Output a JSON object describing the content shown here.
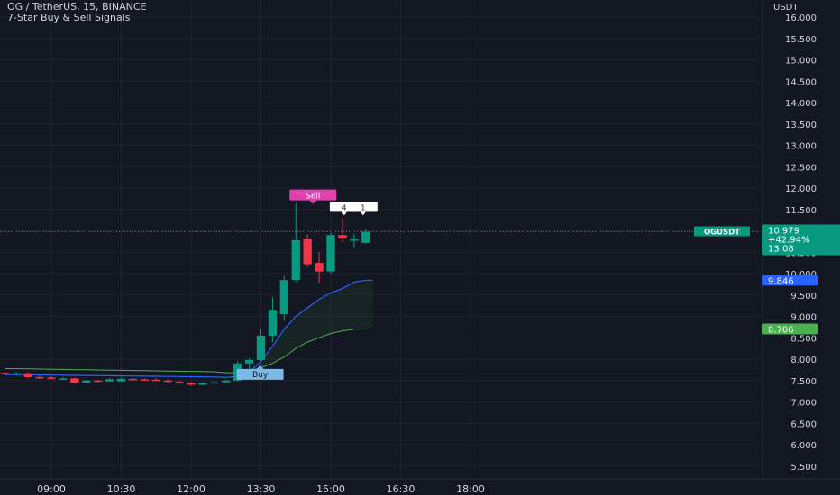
{
  "header": {
    "title": "OG / TetherUS, 15, BINANCE",
    "indicator": "7-Star Buy & Sell Signals"
  },
  "price_axis": {
    "currency": "USDT",
    "ticks": [
      "16.000",
      "15.500",
      "15.000",
      "14.500",
      "14.000",
      "13.500",
      "13.000",
      "12.500",
      "12.000",
      "11.500",
      "11.000",
      "10.500",
      "10.000",
      "9.500",
      "9.000",
      "8.500",
      "8.000",
      "7.500",
      "7.000",
      "6.500",
      "6.000",
      "5.500"
    ]
  },
  "time_axis": {
    "ticks": [
      "09:00",
      "10:30",
      "12:00",
      "13:30",
      "15:00",
      "16:30",
      "18:00"
    ]
  },
  "price_labels": {
    "symbol": "OGUSDT",
    "last_price": "10.979",
    "change": "+42.94%",
    "countdown": "13:08",
    "upper_line": "9.846",
    "lower_line": "8.706"
  },
  "signals": {
    "sell": "Sell",
    "buy": "Buy",
    "marker_a": "4",
    "marker_b": "1"
  },
  "colors": {
    "background": "#131722",
    "grid": "#1f2330",
    "up": "#089981",
    "down": "#f23645",
    "blue_line": "#2962ff",
    "green_line": "#4caf50",
    "sell_label": "#e040b0",
    "buy_label": "#7cb9e8",
    "text": "#d1d4dc"
  },
  "chart_data": {
    "type": "candlestick",
    "symbol": "OGUSDT",
    "interval": "15",
    "exchange": "BINANCE",
    "ylim": [
      5.2,
      16.4
    ],
    "candles": [
      {
        "t": "08:00",
        "o": 7.68,
        "h": 7.7,
        "l": 7.62,
        "c": 7.66
      },
      {
        "t": "08:15",
        "o": 7.66,
        "h": 7.7,
        "l": 7.62,
        "c": 7.67
      },
      {
        "t": "08:30",
        "o": 7.67,
        "h": 7.7,
        "l": 7.55,
        "c": 7.58
      },
      {
        "t": "08:45",
        "o": 7.58,
        "h": 7.62,
        "l": 7.54,
        "c": 7.57
      },
      {
        "t": "09:00",
        "o": 7.57,
        "h": 7.6,
        "l": 7.53,
        "c": 7.54
      },
      {
        "t": "09:15",
        "o": 7.54,
        "h": 7.58,
        "l": 7.51,
        "c": 7.55
      },
      {
        "t": "09:30",
        "o": 7.55,
        "h": 7.57,
        "l": 7.43,
        "c": 7.45
      },
      {
        "t": "09:45",
        "o": 7.45,
        "h": 7.52,
        "l": 7.44,
        "c": 7.5
      },
      {
        "t": "10:00",
        "o": 7.5,
        "h": 7.52,
        "l": 7.46,
        "c": 7.48
      },
      {
        "t": "10:15",
        "o": 7.48,
        "h": 7.56,
        "l": 7.47,
        "c": 7.53
      },
      {
        "t": "10:30",
        "o": 7.48,
        "h": 7.57,
        "l": 7.46,
        "c": 7.54
      },
      {
        "t": "10:45",
        "o": 7.54,
        "h": 7.56,
        "l": 7.51,
        "c": 7.53
      },
      {
        "t": "11:00",
        "o": 7.53,
        "h": 7.55,
        "l": 7.5,
        "c": 7.52
      },
      {
        "t": "11:15",
        "o": 7.52,
        "h": 7.56,
        "l": 7.49,
        "c": 7.5
      },
      {
        "t": "11:30",
        "o": 7.5,
        "h": 7.53,
        "l": 7.45,
        "c": 7.47
      },
      {
        "t": "11:45",
        "o": 7.47,
        "h": 7.5,
        "l": 7.43,
        "c": 7.45
      },
      {
        "t": "12:00",
        "o": 7.45,
        "h": 7.47,
        "l": 7.38,
        "c": 7.4
      },
      {
        "t": "12:15",
        "o": 7.4,
        "h": 7.46,
        "l": 7.39,
        "c": 7.44
      },
      {
        "t": "12:30",
        "o": 7.44,
        "h": 7.48,
        "l": 7.42,
        "c": 7.46
      },
      {
        "t": "12:45",
        "o": 7.46,
        "h": 7.52,
        "l": 7.45,
        "c": 7.5
      },
      {
        "t": "13:00",
        "o": 7.5,
        "h": 7.95,
        "l": 7.48,
        "c": 7.9
      },
      {
        "t": "13:15",
        "o": 7.9,
        "h": 8.02,
        "l": 7.72,
        "c": 7.98
      },
      {
        "t": "13:30",
        "o": 7.98,
        "h": 8.7,
        "l": 7.95,
        "c": 8.55
      },
      {
        "t": "13:45",
        "o": 8.55,
        "h": 9.45,
        "l": 8.4,
        "c": 9.15
      },
      {
        "t": "14:00",
        "o": 9.05,
        "h": 9.95,
        "l": 8.9,
        "c": 9.85
      },
      {
        "t": "14:15",
        "o": 9.85,
        "h": 11.65,
        "l": 9.8,
        "c": 10.78
      },
      {
        "t": "14:30",
        "o": 10.8,
        "h": 10.92,
        "l": 10.15,
        "c": 10.22
      },
      {
        "t": "14:45",
        "o": 10.25,
        "h": 10.5,
        "l": 9.78,
        "c": 10.05
      },
      {
        "t": "15:00",
        "o": 10.05,
        "h": 10.95,
        "l": 10.0,
        "c": 10.9
      },
      {
        "t": "15:15",
        "o": 10.9,
        "h": 11.3,
        "l": 10.72,
        "c": 10.82
      },
      {
        "t": "15:30",
        "o": 10.78,
        "h": 10.92,
        "l": 10.6,
        "c": 10.8
      },
      {
        "t": "15:45",
        "o": 10.72,
        "h": 11.05,
        "l": 10.7,
        "c": 10.979
      }
    ],
    "last_price": 10.979,
    "upper_line": 9.846,
    "lower_line": 8.706,
    "x_ticks": [
      "09:00",
      "10:30",
      "12:00",
      "13:30",
      "15:00",
      "16:30",
      "18:00"
    ],
    "y_ticks": [
      16.0,
      15.5,
      15.0,
      14.5,
      14.0,
      13.5,
      13.0,
      12.5,
      12.0,
      11.5,
      11.0,
      10.5,
      10.0,
      9.5,
      9.0,
      8.5,
      8.0,
      7.5,
      7.0,
      6.5,
      6.0,
      5.5
    ],
    "grid": true
  }
}
